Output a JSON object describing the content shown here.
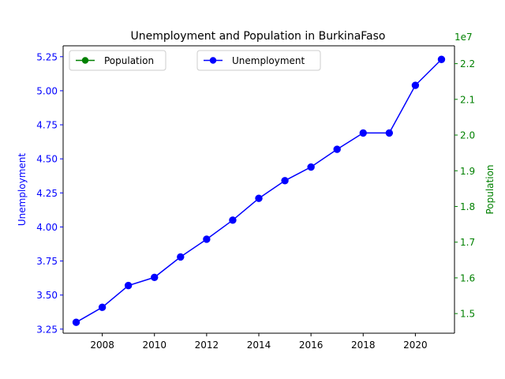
{
  "chart_data": {
    "type": "line",
    "title": "Unemployment and Population in BurkinaFaso",
    "x": [
      2007,
      2008,
      2009,
      2010,
      2011,
      2012,
      2013,
      2014,
      2015,
      2016,
      2017,
      2018,
      2019,
      2020,
      2021
    ],
    "x_ticks": [
      2008,
      2010,
      2012,
      2014,
      2016,
      2018,
      2020
    ],
    "xlim": [
      2006.5,
      2021.5
    ],
    "grid": false,
    "left_axis": {
      "label": "Unemployment",
      "color": "#0000ff",
      "ylim": [
        3.22,
        5.33
      ],
      "ticks": [
        3.25,
        3.5,
        3.75,
        4.0,
        4.25,
        4.5,
        4.75,
        5.0,
        5.25
      ],
      "tick_labels": [
        "3.25",
        "3.50",
        "3.75",
        "4.00",
        "4.25",
        "4.50",
        "4.75",
        "5.00",
        "5.25"
      ]
    },
    "right_axis": {
      "label": "Population",
      "color": "#008000",
      "offset_text": "1e7",
      "ylim": [
        1.445,
        2.25
      ],
      "ticks": [
        1.5,
        1.6,
        1.7,
        1.8,
        1.9,
        2.0,
        2.1,
        2.2
      ],
      "tick_labels": [
        "1.5",
        "1.6",
        "1.7",
        "1.8",
        "1.9",
        "2.0",
        "2.1",
        "2.2"
      ]
    },
    "series": [
      {
        "name": "Unemployment",
        "axis": "left",
        "color": "#0000ff",
        "values": [
          3.3,
          3.41,
          3.57,
          3.63,
          3.78,
          3.91,
          4.05,
          4.21,
          4.34,
          4.44,
          4.57,
          4.69,
          4.69,
          5.04,
          5.23
        ]
      },
      {
        "name": "Population",
        "axis": "right",
        "color": "#008000",
        "values": [
          14.78,
          15.18,
          15.62,
          16.03,
          16.57,
          17.11,
          17.63,
          18.16,
          18.72,
          19.27,
          19.84,
          20.39,
          20.95,
          21.52,
          22.1
        ]
      }
    ],
    "legends": [
      {
        "series": "Population",
        "placement": "top-left"
      },
      {
        "series": "Unemployment",
        "placement": "top-center"
      }
    ]
  }
}
